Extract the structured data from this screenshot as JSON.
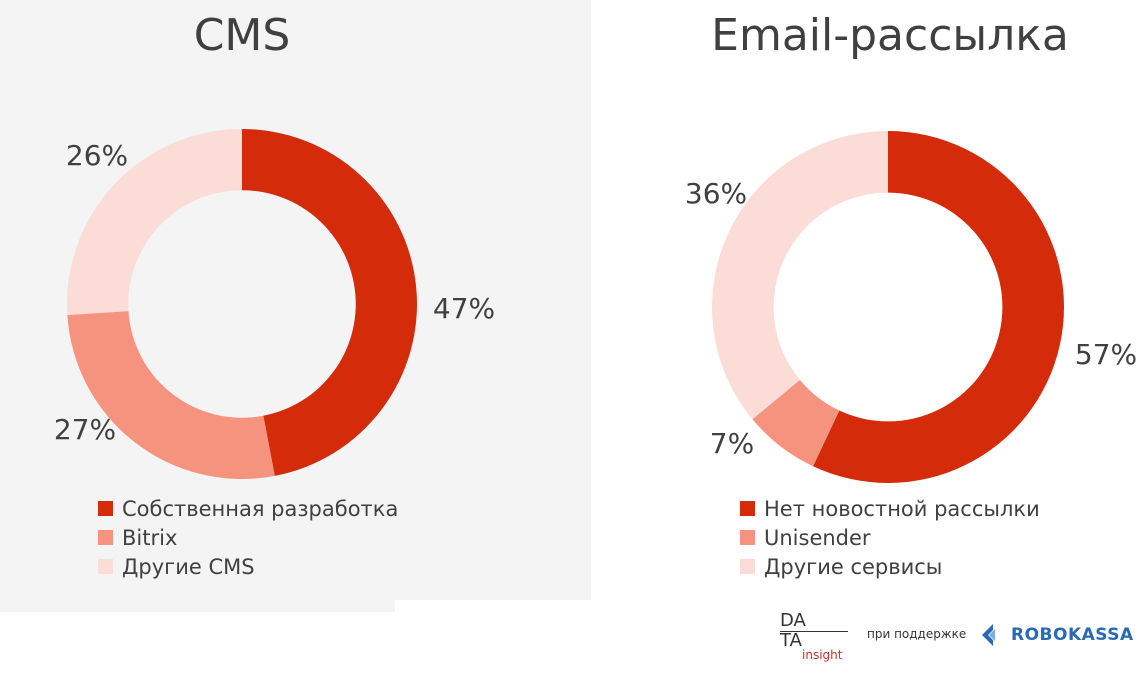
{
  "chart_data": [
    {
      "type": "pie",
      "title": "CMS",
      "categories": [
        "Собственная разработка",
        "Bitrix",
        "Другие CMS"
      ],
      "values": [
        47,
        27,
        26
      ],
      "labels": [
        "47%",
        "27%",
        "26%"
      ],
      "colors": [
        "#d42b0b",
        "#f5937f",
        "#fbdcd6"
      ],
      "hole": 0.65,
      "legend_position": "bottom-left"
    },
    {
      "type": "pie",
      "title": "Email-рассылка",
      "categories": [
        "Нет новостной рассылки",
        "Unisender",
        "Другие сервисы"
      ],
      "values": [
        57,
        7,
        36
      ],
      "labels": [
        "57%",
        "7%",
        "36%"
      ],
      "colors": [
        "#d42b0b",
        "#f5937f",
        "#fbdcd6"
      ],
      "hole": 0.65,
      "legend_position": "bottom-left"
    }
  ],
  "footer": {
    "data_logo_top": "DA",
    "data_logo_bottom": "TA",
    "data_logo_sub": "insight",
    "support_text": "при поддержке",
    "robokassa_text": "ROBOKASSA"
  }
}
